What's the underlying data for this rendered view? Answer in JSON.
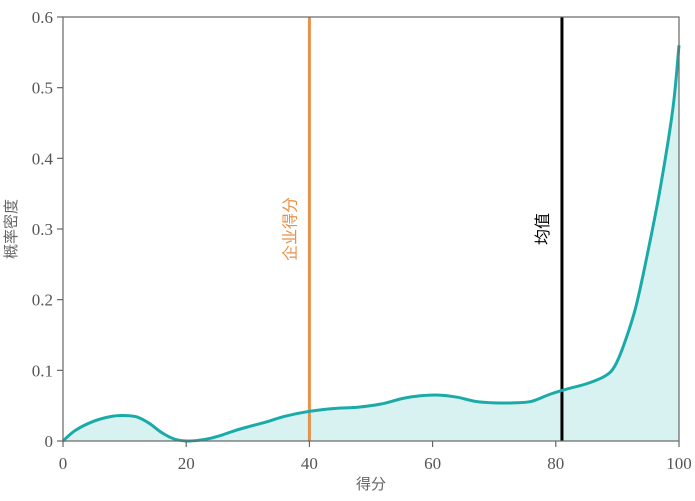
{
  "chart_data": {
    "type": "area",
    "title": "",
    "xlabel": "得分",
    "ylabel": "概率密度",
    "xlim": [
      0,
      100
    ],
    "ylim": [
      0,
      0.6
    ],
    "xticks": [
      0,
      20,
      40,
      60,
      80,
      100
    ],
    "yticks": [
      0,
      0.1,
      0.2,
      0.3,
      0.4,
      0.5,
      0.6
    ],
    "ytick_labels": [
      "0",
      "0.1",
      "0.2",
      "0.3",
      "0.4",
      "0.5",
      "0.6"
    ],
    "grid": false,
    "series": [
      {
        "color": "#1aaba8",
        "fill_color": "#d8f1f1",
        "x": [
          0,
          2,
          5,
          8,
          10,
          12,
          14,
          16,
          18,
          20,
          22,
          24,
          26,
          28,
          30,
          33,
          36,
          40,
          44,
          48,
          52,
          55,
          58,
          61,
          64,
          67,
          70,
          73,
          76,
          79,
          82,
          85,
          88,
          89.5,
          91,
          93,
          95,
          97,
          99,
          100
        ],
        "y": [
          0.0,
          0.015,
          0.028,
          0.035,
          0.036,
          0.034,
          0.025,
          0.012,
          0.003,
          0.0,
          0.001,
          0.004,
          0.009,
          0.015,
          0.02,
          0.027,
          0.035,
          0.042,
          0.046,
          0.048,
          0.053,
          0.06,
          0.064,
          0.065,
          0.062,
          0.056,
          0.054,
          0.054,
          0.056,
          0.066,
          0.074,
          0.081,
          0.092,
          0.105,
          0.135,
          0.19,
          0.27,
          0.36,
          0.47,
          0.56
        ]
      }
    ],
    "vlines": [
      {
        "label": "企业得分",
        "x": 40,
        "color": "#e8914a"
      },
      {
        "label": "均值",
        "x": 81,
        "color": "#000000"
      }
    ]
  }
}
